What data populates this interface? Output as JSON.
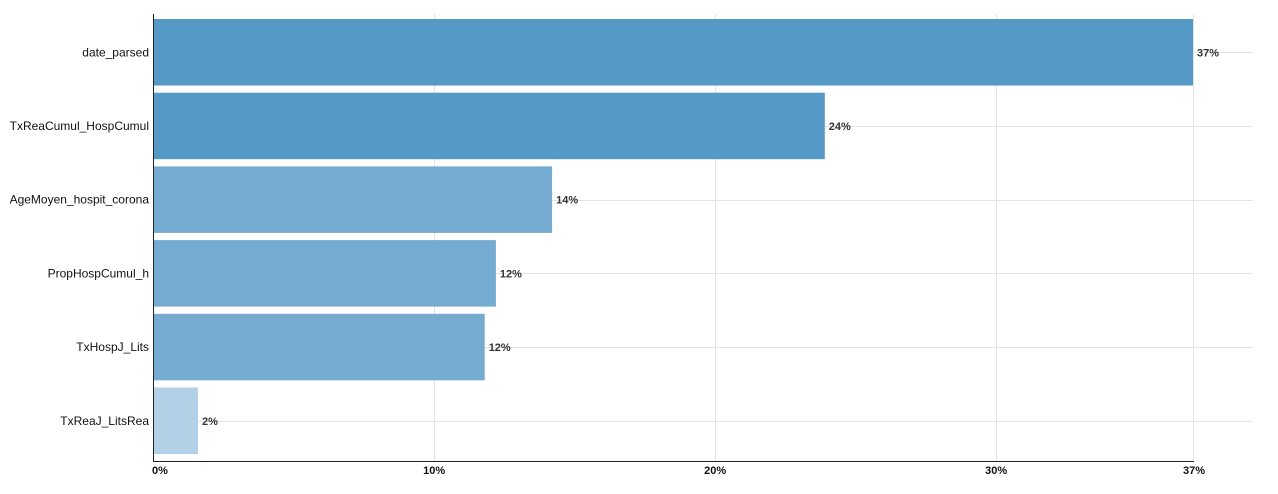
{
  "chart_data": {
    "type": "bar",
    "orientation": "horizontal",
    "title": "",
    "xlabel": "",
    "ylabel": "",
    "categories": [
      "date_parsed",
      "TxReaCumul_HospCumul",
      "AgeMoyen_hospit_corona",
      "PropHospCumul_h",
      "TxHospJ_Lits",
      "TxReaJ_LitsRea"
    ],
    "values": [
      37,
      23.9,
      14.2,
      12.2,
      11.8,
      1.6
    ],
    "value_labels": [
      "37%",
      "24%",
      "14%",
      "12%",
      "12%",
      "2%"
    ],
    "colors": [
      "#5599c6",
      "#5599c6",
      "#75abd1",
      "#75abd1",
      "#75abd1",
      "#b3d1e6"
    ],
    "xlim": [
      0,
      37
    ],
    "x_ticks": [
      0,
      10,
      20,
      30,
      37
    ],
    "x_tick_labels": [
      "0%",
      "10%",
      "20%",
      "30%",
      "37%"
    ],
    "grid": true,
    "legend": "none"
  }
}
